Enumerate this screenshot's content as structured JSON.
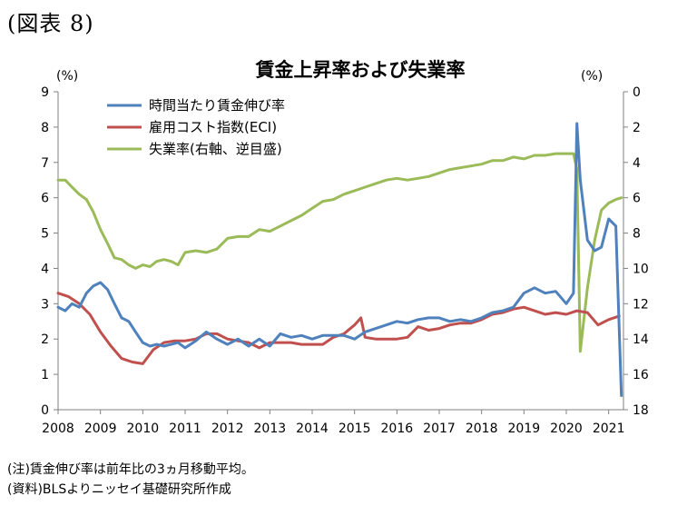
{
  "figure_label": "(図表 8)",
  "notes": [
    "(注)賃金伸び率は前年比の3ヵ月移動平均。",
    "(資料)BLSよりニッセイ基礎研究所作成"
  ],
  "chart_data": {
    "type": "line",
    "title": "賃金上昇率および失業率",
    "left_unit": "(%)",
    "right_unit": "(%)",
    "ylim_left": [
      0,
      9
    ],
    "yticks_left": [
      "0",
      "1",
      "2",
      "3",
      "4",
      "5",
      "6",
      "7",
      "8",
      "9"
    ],
    "ylim_right_reversed": [
      0,
      18
    ],
    "yticks_right": [
      "0",
      "2",
      "4",
      "6",
      "8",
      "10",
      "12",
      "14",
      "16",
      "18"
    ],
    "x_ticks": [
      "2008",
      "2009",
      "2010",
      "2011",
      "2012",
      "2013",
      "2014",
      "2015",
      "2016",
      "2017",
      "2018",
      "2019",
      "2020",
      "2021"
    ],
    "xlim": [
      2008,
      2021.35
    ],
    "legend_placement": "top-left",
    "grid": false,
    "series": [
      {
        "name": "時間当たり賃金伸び率",
        "axis": "left",
        "color": "#4F81BD",
        "x": [
          2008.0,
          2008.17,
          2008.33,
          2008.5,
          2008.67,
          2008.83,
          2009.0,
          2009.17,
          2009.33,
          2009.5,
          2009.67,
          2009.83,
          2010.0,
          2010.17,
          2010.33,
          2010.5,
          2010.67,
          2010.83,
          2011.0,
          2011.25,
          2011.5,
          2011.75,
          2012.0,
          2012.25,
          2012.5,
          2012.75,
          2013.0,
          2013.25,
          2013.5,
          2013.75,
          2014.0,
          2014.25,
          2014.5,
          2014.75,
          2015.0,
          2015.25,
          2015.5,
          2015.75,
          2016.0,
          2016.25,
          2016.5,
          2016.75,
          2017.0,
          2017.25,
          2017.5,
          2017.75,
          2018.0,
          2018.25,
          2018.5,
          2018.75,
          2019.0,
          2019.25,
          2019.5,
          2019.75,
          2020.0,
          2020.17,
          2020.25,
          2020.33,
          2020.5,
          2020.67,
          2020.83,
          2021.0,
          2021.17,
          2021.3
        ],
        "y": [
          2.9,
          2.8,
          3.0,
          2.9,
          3.3,
          3.5,
          3.6,
          3.4,
          3.0,
          2.6,
          2.5,
          2.2,
          1.9,
          1.8,
          1.85,
          1.8,
          1.85,
          1.9,
          1.75,
          1.95,
          2.2,
          2.0,
          1.85,
          2.0,
          1.8,
          2.0,
          1.8,
          2.15,
          2.05,
          2.1,
          2.0,
          2.1,
          2.1,
          2.1,
          2.0,
          2.2,
          2.3,
          2.4,
          2.5,
          2.45,
          2.55,
          2.6,
          2.6,
          2.5,
          2.55,
          2.5,
          2.6,
          2.75,
          2.8,
          2.9,
          3.3,
          3.45,
          3.3,
          3.35,
          3.0,
          3.3,
          8.1,
          6.5,
          4.8,
          4.5,
          4.6,
          5.4,
          5.2,
          0.4
        ]
      },
      {
        "name": "雇用コスト指数(ECI)",
        "axis": "left",
        "color": "#C0504D",
        "x": [
          2008.0,
          2008.25,
          2008.5,
          2008.75,
          2009.0,
          2009.25,
          2009.5,
          2009.75,
          2010.0,
          2010.25,
          2010.5,
          2010.75,
          2011.0,
          2011.25,
          2011.5,
          2011.75,
          2012.0,
          2012.25,
          2012.5,
          2012.75,
          2013.0,
          2013.25,
          2013.5,
          2013.75,
          2014.0,
          2014.25,
          2014.5,
          2014.75,
          2015.0,
          2015.15,
          2015.25,
          2015.5,
          2015.75,
          2016.0,
          2016.25,
          2016.5,
          2016.75,
          2017.0,
          2017.25,
          2017.5,
          2017.75,
          2018.0,
          2018.25,
          2018.5,
          2018.75,
          2019.0,
          2019.25,
          2019.5,
          2019.75,
          2020.0,
          2020.25,
          2020.5,
          2020.75,
          2021.0,
          2021.25
        ],
        "y": [
          3.3,
          3.2,
          3.0,
          2.7,
          2.2,
          1.8,
          1.45,
          1.35,
          1.3,
          1.7,
          1.9,
          1.95,
          1.95,
          2.0,
          2.15,
          2.15,
          2.0,
          1.95,
          1.9,
          1.75,
          1.9,
          1.9,
          1.9,
          1.85,
          1.85,
          1.85,
          2.05,
          2.15,
          2.4,
          2.6,
          2.05,
          2.0,
          2.0,
          2.0,
          2.05,
          2.35,
          2.25,
          2.3,
          2.4,
          2.45,
          2.45,
          2.55,
          2.7,
          2.75,
          2.85,
          2.9,
          2.8,
          2.7,
          2.75,
          2.7,
          2.8,
          2.75,
          2.4,
          2.55,
          2.65
        ]
      },
      {
        "name": "失業率(右軸、逆目盛)",
        "axis": "right",
        "color": "#9BBB59",
        "x": [
          2008.0,
          2008.17,
          2008.33,
          2008.5,
          2008.67,
          2008.83,
          2009.0,
          2009.17,
          2009.33,
          2009.5,
          2009.67,
          2009.83,
          2010.0,
          2010.17,
          2010.33,
          2010.5,
          2010.67,
          2010.83,
          2011.0,
          2011.25,
          2011.5,
          2011.75,
          2012.0,
          2012.25,
          2012.5,
          2012.75,
          2013.0,
          2013.25,
          2013.5,
          2013.75,
          2014.0,
          2014.25,
          2014.5,
          2014.75,
          2015.0,
          2015.25,
          2015.5,
          2015.75,
          2016.0,
          2016.25,
          2016.5,
          2016.75,
          2017.0,
          2017.25,
          2017.5,
          2017.75,
          2018.0,
          2018.25,
          2018.5,
          2018.75,
          2019.0,
          2019.25,
          2019.5,
          2019.75,
          2020.0,
          2020.17,
          2020.25,
          2020.33,
          2020.5,
          2020.67,
          2020.83,
          2021.0,
          2021.17,
          2021.3
        ],
        "y": [
          5.0,
          5.0,
          5.4,
          5.8,
          6.1,
          6.8,
          7.8,
          8.6,
          9.4,
          9.5,
          9.8,
          10.0,
          9.8,
          9.9,
          9.6,
          9.5,
          9.6,
          9.8,
          9.1,
          9.0,
          9.1,
          8.9,
          8.3,
          8.2,
          8.2,
          7.8,
          7.9,
          7.6,
          7.3,
          7.0,
          6.6,
          6.2,
          6.1,
          5.8,
          5.6,
          5.4,
          5.2,
          5.0,
          4.9,
          5.0,
          4.9,
          4.8,
          4.6,
          4.4,
          4.3,
          4.2,
          4.1,
          3.9,
          3.9,
          3.7,
          3.8,
          3.6,
          3.6,
          3.5,
          3.5,
          3.5,
          4.4,
          14.7,
          11.1,
          8.4,
          6.7,
          6.3,
          6.1,
          6.0
        ]
      }
    ]
  }
}
